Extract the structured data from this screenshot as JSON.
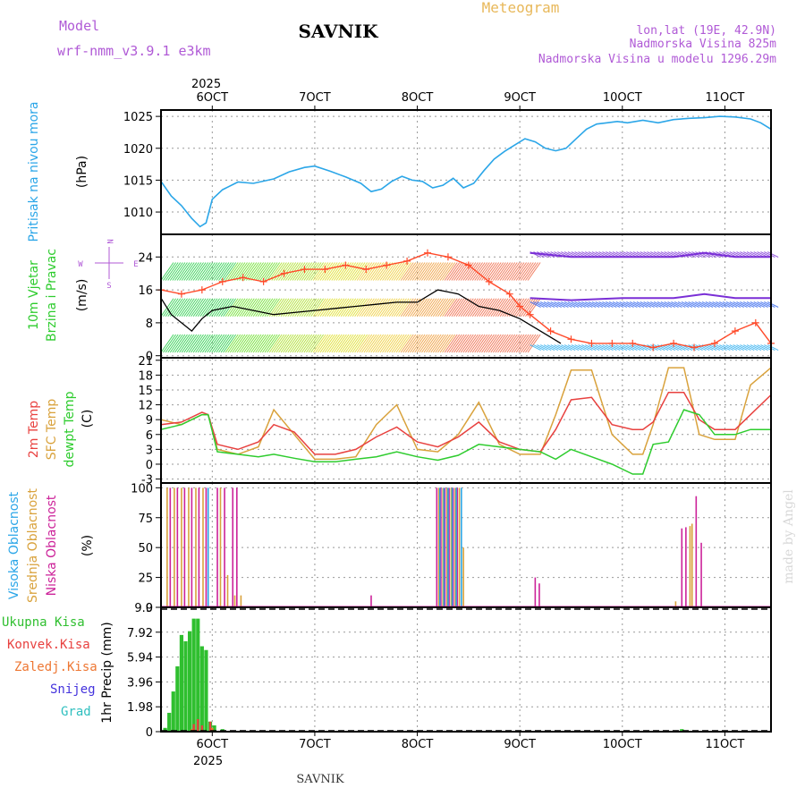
{
  "header": {
    "model_label": "Model",
    "model_name": "wrf-nmm_v3.9.1 e3km",
    "station": "SAVNIK",
    "meteogram_label": "Meteogram",
    "lonlat": "lon,lat (19E, 42.9N)",
    "elevation": "Nadmorska Visina 825m",
    "model_elevation": "Nadmorska Visina u modelu 1296.29m"
  },
  "footer": {
    "station": "SAVNIK",
    "credit": "made by Angel"
  },
  "time_axis": {
    "labels": [
      "6OCT",
      "7OCT",
      "8OCT",
      "9OCT",
      "10OCT",
      "11OCT"
    ],
    "year": "2025",
    "range_days": [
      5.5,
      11.45
    ]
  },
  "colors": {
    "pressure": "#2ba6e8",
    "temp2m": "#e8413f",
    "sfc": "#d9a23c",
    "dew": "#2ecc2e",
    "wind_speed": "#000000",
    "gust": "#ff4a2a",
    "low_cloud": "#cc2299",
    "mid_cloud": "#d9a23c",
    "high_cloud": "#2ba6e8",
    "total_precip": "#2fbf2f",
    "conv_precip": "#e8413f",
    "ice_precip": "#ee7733",
    "snow": "#4433dd",
    "graupel": "#2fbfbf"
  },
  "chart_data": [
    {
      "panel": "pressure",
      "type": "line",
      "ylabel_main": "Pritisak na nivou mora",
      "ylabel_unit": "(hPa)",
      "ylim": [
        1006.5,
        1026
      ],
      "yticks": [
        "1010",
        "1015",
        "1020",
        "1025"
      ],
      "x": [
        5.5,
        5.6,
        5.7,
        5.8,
        5.88,
        5.94,
        6.0,
        6.1,
        6.25,
        6.4,
        6.6,
        6.75,
        6.9,
        7.0,
        7.15,
        7.3,
        7.45,
        7.55,
        7.65,
        7.75,
        7.85,
        7.95,
        8.05,
        8.15,
        8.25,
        8.35,
        8.45,
        8.55,
        8.65,
        8.75,
        8.85,
        8.95,
        9.05,
        9.15,
        9.25,
        9.35,
        9.45,
        9.55,
        9.65,
        9.75,
        9.85,
        9.95,
        10.05,
        10.2,
        10.35,
        10.5,
        10.65,
        10.8,
        10.95,
        11.1,
        11.25,
        11.35,
        11.45
      ],
      "values": [
        1014.8,
        1012.5,
        1011.0,
        1009.0,
        1007.7,
        1008.3,
        1012.0,
        1013.5,
        1014.7,
        1014.5,
        1015.2,
        1016.3,
        1017.0,
        1017.2,
        1016.4,
        1015.5,
        1014.5,
        1013.2,
        1013.6,
        1014.8,
        1015.6,
        1015.0,
        1014.8,
        1013.8,
        1014.2,
        1015.3,
        1013.8,
        1014.5,
        1016.5,
        1018.3,
        1019.5,
        1020.5,
        1021.5,
        1021.0,
        1020.0,
        1019.6,
        1020.0,
        1021.5,
        1023.0,
        1023.8,
        1024.0,
        1024.2,
        1024.0,
        1024.4,
        1024.0,
        1024.5,
        1024.7,
        1024.8,
        1025.0,
        1024.9,
        1024.6,
        1024.0,
        1023.0
      ]
    },
    {
      "panel": "wind",
      "type": "line",
      "ylabel_main": "10m Vjetar",
      "ylabel_sub": "Brzina i Pravac",
      "ylabel_unit": "(m/s)",
      "compass": {
        "n": "N",
        "e": "E",
        "s": "S",
        "w": "W"
      },
      "ylim": [
        -0.5,
        29.5
      ],
      "yticks": [
        "0",
        "8",
        "16",
        "24"
      ],
      "series": [
        {
          "name": "Wind speed",
          "x": [
            5.5,
            5.6,
            5.7,
            5.8,
            5.9,
            6.0,
            6.2,
            6.4,
            6.6,
            6.8,
            7.0,
            7.2,
            7.4,
            7.6,
            7.8,
            8.0,
            8.2,
            8.4,
            8.6,
            8.8,
            9.0,
            9.2,
            9.4
          ],
          "values": [
            14,
            10,
            8,
            6,
            9,
            11,
            12,
            11,
            10,
            10.5,
            11,
            11.5,
            12,
            12.5,
            13,
            13,
            16,
            15,
            12,
            11,
            9,
            6,
            3
          ]
        },
        {
          "name": "Gust",
          "x": [
            5.5,
            5.7,
            5.9,
            6.1,
            6.3,
            6.5,
            6.7,
            6.9,
            7.1,
            7.3,
            7.5,
            7.7,
            7.9,
            8.1,
            8.3,
            8.5,
            8.7,
            8.9,
            9.0,
            9.1,
            9.3,
            9.5,
            9.7,
            9.9,
            10.1,
            10.3,
            10.5,
            10.7,
            10.9,
            11.1,
            11.3,
            11.45
          ],
          "values": [
            16,
            15,
            16,
            18,
            19,
            18,
            20,
            21,
            21,
            22,
            21,
            22,
            23,
            25,
            24,
            22,
            18,
            15,
            12,
            10,
            6,
            4,
            3,
            3,
            3,
            2,
            3,
            2,
            3,
            6,
            8,
            3
          ]
        },
        {
          "name": "Upper level band",
          "x": [
            9.1,
            9.5,
            10.0,
            10.5,
            10.8,
            11.1,
            11.45
          ],
          "values": [
            25,
            24,
            24,
            24,
            25,
            24,
            24
          ]
        },
        {
          "name": "Mid level band",
          "x": [
            9.1,
            9.5,
            10.0,
            10.5,
            10.8,
            11.1,
            11.45
          ],
          "values": [
            14,
            13.5,
            14,
            14,
            15,
            14,
            14
          ]
        }
      ]
    },
    {
      "panel": "temperature",
      "type": "line",
      "ylabel_lines": [
        "2m Temp",
        "SFC Temp",
        "dewpt Temp"
      ],
      "ylabel_unit": "(C)",
      "ylim": [
        -3.8,
        21.5
      ],
      "yticks": [
        "-3",
        "0",
        "3",
        "6",
        "9",
        "12",
        "15",
        "18",
        "21"
      ],
      "series": [
        {
          "name": "2m Temp",
          "x": [
            5.5,
            5.7,
            5.9,
            5.96,
            6.05,
            6.25,
            6.45,
            6.6,
            6.8,
            7.0,
            7.2,
            7.4,
            7.6,
            7.8,
            8.0,
            8.2,
            8.4,
            8.6,
            8.8,
            9.0,
            9.2,
            9.35,
            9.5,
            9.7,
            9.9,
            10.1,
            10.2,
            10.3,
            10.45,
            10.6,
            10.75,
            10.9,
            11.1,
            11.25,
            11.45
          ],
          "values": [
            8,
            8.5,
            10.5,
            10,
            4,
            3,
            4.5,
            8,
            6.5,
            2,
            2,
            3,
            5.5,
            7.5,
            4.5,
            3.5,
            5.5,
            8.5,
            4.5,
            3,
            2.5,
            7,
            13,
            13.5,
            8,
            7,
            7,
            8.5,
            14.5,
            14.5,
            9,
            7,
            7,
            10,
            14
          ]
        },
        {
          "name": "SFC Temp",
          "x": [
            5.5,
            5.7,
            5.9,
            5.96,
            6.05,
            6.25,
            6.45,
            6.6,
            6.8,
            7.0,
            7.2,
            7.4,
            7.6,
            7.8,
            8.0,
            8.2,
            8.4,
            8.6,
            8.8,
            9.0,
            9.2,
            9.35,
            9.5,
            9.7,
            9.9,
            10.1,
            10.2,
            10.3,
            10.45,
            10.6,
            10.75,
            10.9,
            11.1,
            11.25,
            11.45
          ],
          "values": [
            9,
            8,
            10,
            10,
            3,
            2,
            3.5,
            11,
            6,
            1,
            1,
            1.5,
            8,
            12,
            3,
            2.5,
            6,
            12.5,
            4,
            2,
            2,
            10,
            19,
            19,
            6,
            2,
            2,
            8,
            19.5,
            19.5,
            6,
            5,
            5,
            16,
            19.5
          ]
        },
        {
          "name": "Dewpt Temp",
          "x": [
            5.5,
            5.7,
            5.9,
            5.96,
            6.05,
            6.25,
            6.45,
            6.6,
            6.8,
            7.0,
            7.2,
            7.4,
            7.6,
            7.8,
            8.0,
            8.2,
            8.4,
            8.6,
            8.8,
            9.0,
            9.2,
            9.35,
            9.5,
            9.7,
            9.9,
            10.1,
            10.2,
            10.3,
            10.45,
            10.6,
            10.75,
            10.9,
            11.1,
            11.25,
            11.45
          ],
          "values": [
            7,
            8,
            10,
            10,
            2.5,
            2,
            1.5,
            2,
            1.2,
            0.5,
            0.5,
            1,
            1.5,
            2.5,
            1.5,
            0.8,
            1.8,
            4,
            3.5,
            3,
            2.5,
            1,
            3,
            1.5,
            0,
            -2,
            -2,
            4,
            4.5,
            11,
            10,
            6,
            6,
            7,
            7
          ]
        }
      ]
    },
    {
      "panel": "cloud",
      "type": "bar",
      "ylabel_lines": [
        "Visoka Oblacnost",
        "Srednja Oblacnost",
        "Niska Oblacnost"
      ],
      "ylabel_unit": "(%)",
      "ylim": [
        0,
        104
      ],
      "yticks": [
        "0",
        "25",
        "50",
        "75",
        "100"
      ],
      "series": [
        {
          "name": "Niska Oblacnost",
          "x": [
            5.59,
            5.66,
            5.73,
            5.8,
            5.87,
            5.94,
            6.05,
            6.12,
            6.2,
            6.24,
            7.55,
            8.19,
            8.23,
            8.27,
            8.31,
            8.35,
            8.39,
            9.15,
            9.19,
            10.58,
            10.62,
            10.72,
            10.77
          ],
          "values": [
            100,
            100,
            100,
            100,
            100,
            100,
            100,
            100,
            100,
            100,
            10,
            100,
            100,
            100,
            100,
            100,
            100,
            25,
            20,
            66,
            67,
            93,
            54
          ]
        },
        {
          "name": "Srednja Oblacnost",
          "x": [
            5.56,
            5.63,
            5.7,
            5.77,
            5.84,
            5.91,
            6.08,
            6.15,
            6.22,
            6.28,
            8.21,
            8.25,
            8.29,
            8.33,
            8.37,
            8.41,
            8.45,
            10.52,
            10.66,
            10.68
          ],
          "values": [
            100,
            100,
            100,
            100,
            100,
            100,
            100,
            27,
            10,
            10,
            100,
            100,
            100,
            100,
            100,
            100,
            50,
            5,
            68,
            70
          ]
        },
        {
          "name": "Visoka Oblacnost",
          "x": [
            5.96,
            8.22,
            8.26,
            8.3,
            8.34,
            8.38,
            8.43
          ],
          "values": [
            100,
            100,
            100,
            100,
            100,
            100,
            100
          ]
        }
      ]
    },
    {
      "panel": "precip",
      "type": "bar",
      "ylabel_main": "1hr Precip",
      "ylabel_unit": "(mm)",
      "legend": [
        "Ukupna Kisa",
        "Konvek.Kisa",
        "Zaledj.Kisa",
        "Snijeg",
        "Grad"
      ],
      "ylim": [
        0,
        9.9
      ],
      "yticks": [
        "0",
        "1.98",
        "3.96",
        "5.94",
        "7.92",
        "9.9"
      ],
      "series": [
        {
          "name": "Ukupna Kisa",
          "x": [
            5.54,
            5.58,
            5.62,
            5.66,
            5.7,
            5.74,
            5.78,
            5.82,
            5.86,
            5.9,
            5.94,
            5.98,
            6.02,
            6.1,
            6.6,
            10.58
          ],
          "values": [
            0.3,
            1.5,
            3.2,
            5.2,
            7.7,
            7.2,
            8.0,
            9.0,
            9.0,
            6.8,
            6.5,
            0.8,
            0.5,
            0.2,
            0.05,
            0.2
          ]
        },
        {
          "name": "Konvek.Kisa",
          "x": [
            5.82,
            5.86,
            5.9,
            5.98
          ],
          "values": [
            0.6,
            1.0,
            0.5,
            0.8
          ]
        },
        {
          "name": "Zaledj.Kisa",
          "x": [
            5.8,
            6.0
          ],
          "values": [
            0.2,
            0.3
          ]
        }
      ]
    }
  ]
}
